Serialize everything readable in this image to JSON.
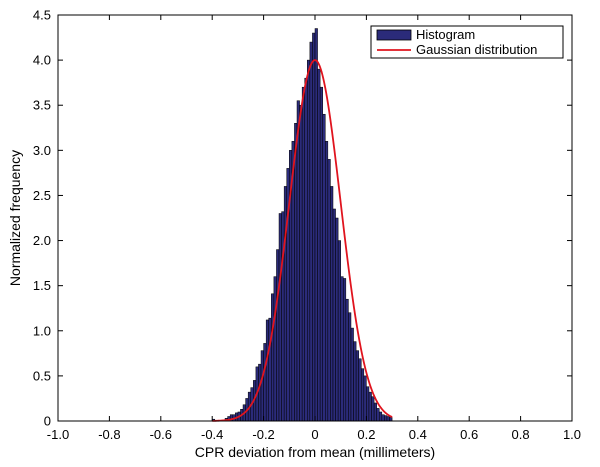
{
  "chart_data": {
    "type": "bar",
    "xlabel": "CPR deviation from mean (millimeters)",
    "ylabel": "Normalized frequency",
    "xlim": [
      -1.0,
      1.0
    ],
    "ylim": [
      0,
      4.5
    ],
    "xticks": [
      -1.0,
      -0.8,
      -0.6,
      -0.4,
      -0.2,
      0,
      0.2,
      0.4,
      0.6,
      0.8,
      1.0
    ],
    "xtick_labels": [
      "-1.0",
      "-0.8",
      "-0.6",
      "-0.4",
      "-0.2",
      "0",
      "0.2",
      "0.4",
      "0.6",
      "0.8",
      "1.0"
    ],
    "yticks": [
      0,
      0.5,
      1.0,
      1.5,
      2.0,
      2.5,
      3.0,
      3.5,
      4.0,
      4.5
    ],
    "ytick_labels": [
      "0",
      "0.5",
      "1.0",
      "1.5",
      "2.0",
      "2.5",
      "3.0",
      "3.5",
      "4.0",
      "4.5"
    ],
    "legend_position": "top-right",
    "histogram": {
      "name": "Histogram",
      "color": "#2b2b7a",
      "edge_color": "#000000",
      "bin_width": 0.01,
      "bin_centers": [
        -0.395,
        -0.385,
        -0.375,
        -0.365,
        -0.355,
        -0.345,
        -0.335,
        -0.325,
        -0.315,
        -0.305,
        -0.295,
        -0.285,
        -0.275,
        -0.265,
        -0.255,
        -0.245,
        -0.235,
        -0.225,
        -0.215,
        -0.205,
        -0.195,
        -0.185,
        -0.175,
        -0.165,
        -0.155,
        -0.145,
        -0.135,
        -0.125,
        -0.115,
        -0.105,
        -0.095,
        -0.085,
        -0.075,
        -0.065,
        -0.055,
        -0.045,
        -0.035,
        -0.025,
        -0.015,
        -0.005,
        0.005,
        0.015,
        0.025,
        0.035,
        0.045,
        0.055,
        0.065,
        0.075,
        0.085,
        0.095,
        0.105,
        0.115,
        0.125,
        0.135,
        0.145,
        0.155,
        0.165,
        0.175,
        0.185,
        0.195,
        0.205,
        0.215,
        0.225,
        0.235,
        0.245,
        0.255,
        0.265,
        0.275,
        0.285,
        0.295
      ],
      "values": [
        0.02,
        0.0,
        0.0,
        0.0,
        0.01,
        0.03,
        0.05,
        0.07,
        0.07,
        0.09,
        0.1,
        0.13,
        0.18,
        0.25,
        0.32,
        0.37,
        0.45,
        0.6,
        0.63,
        0.78,
        0.86,
        1.12,
        1.14,
        1.41,
        1.6,
        1.9,
        2.3,
        2.32,
        2.6,
        2.8,
        3.0,
        3.1,
        3.3,
        3.55,
        3.5,
        3.7,
        3.8,
        4.0,
        4.2,
        4.3,
        4.35,
        3.9,
        3.7,
        3.4,
        3.1,
        2.9,
        2.6,
        2.35,
        2.25,
        2.0,
        1.6,
        1.58,
        1.35,
        1.2,
        1.03,
        0.88,
        0.78,
        0.69,
        0.58,
        0.5,
        0.38,
        0.32,
        0.27,
        0.2,
        0.14,
        0.1,
        0.07,
        0.06,
        0.05,
        0.04
      ]
    },
    "gaussian": {
      "name": "Gaussian distribution",
      "color": "#e0141e",
      "mean": 0.0,
      "peak": 4.0,
      "sigma": 0.0997,
      "x_range": [
        -0.4,
        0.3
      ]
    }
  }
}
